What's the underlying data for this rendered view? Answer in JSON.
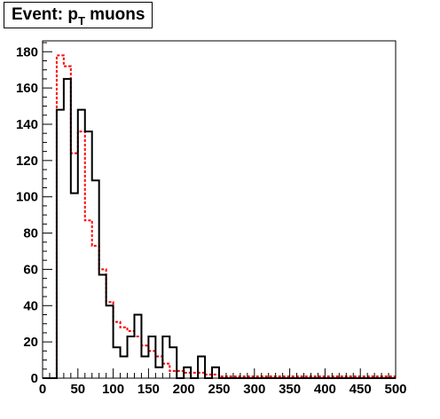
{
  "title": {
    "main": "Event: p",
    "subscript": "T",
    "rest": " muons"
  },
  "chart_data": {
    "type": "histogram",
    "title": "Event: p_T muons",
    "xlim": [
      0,
      500
    ],
    "ylim": [
      0,
      186
    ],
    "bin_width": 10,
    "x_ticks": [
      0,
      50,
      100,
      150,
      200,
      250,
      300,
      350,
      400,
      450,
      500
    ],
    "y_ticks": [
      0,
      20,
      40,
      60,
      80,
      100,
      120,
      140,
      160,
      180
    ],
    "grid": false,
    "legend": "none",
    "series": [
      {
        "style": "solid",
        "color": "#000000",
        "bin_edges_start": 0,
        "values": [
          0,
          0,
          148,
          165,
          102,
          148,
          136,
          109,
          57,
          40,
          17,
          12,
          23,
          35,
          12,
          23,
          6,
          23,
          17,
          0,
          6,
          0,
          12,
          0,
          6,
          0,
          0,
          0,
          0,
          0,
          0,
          0,
          0,
          0,
          0,
          0,
          0,
          0,
          0,
          0,
          0,
          0,
          0,
          0,
          0,
          0,
          0,
          0,
          0,
          0
        ]
      },
      {
        "style": "dashed",
        "color": "#ff0000",
        "bin_edges_start": 0,
        "values": [
          0,
          0,
          178,
          172,
          124,
          136,
          87,
          73,
          60,
          42,
          31,
          28,
          26,
          23,
          18,
          15,
          12,
          8,
          4,
          4,
          3,
          3,
          3,
          2,
          2,
          1,
          1,
          1,
          1,
          1,
          1,
          1,
          1,
          1,
          1,
          1,
          1,
          1,
          1,
          1,
          1,
          1,
          1,
          1,
          1,
          1,
          1,
          1,
          1,
          1
        ]
      }
    ]
  }
}
